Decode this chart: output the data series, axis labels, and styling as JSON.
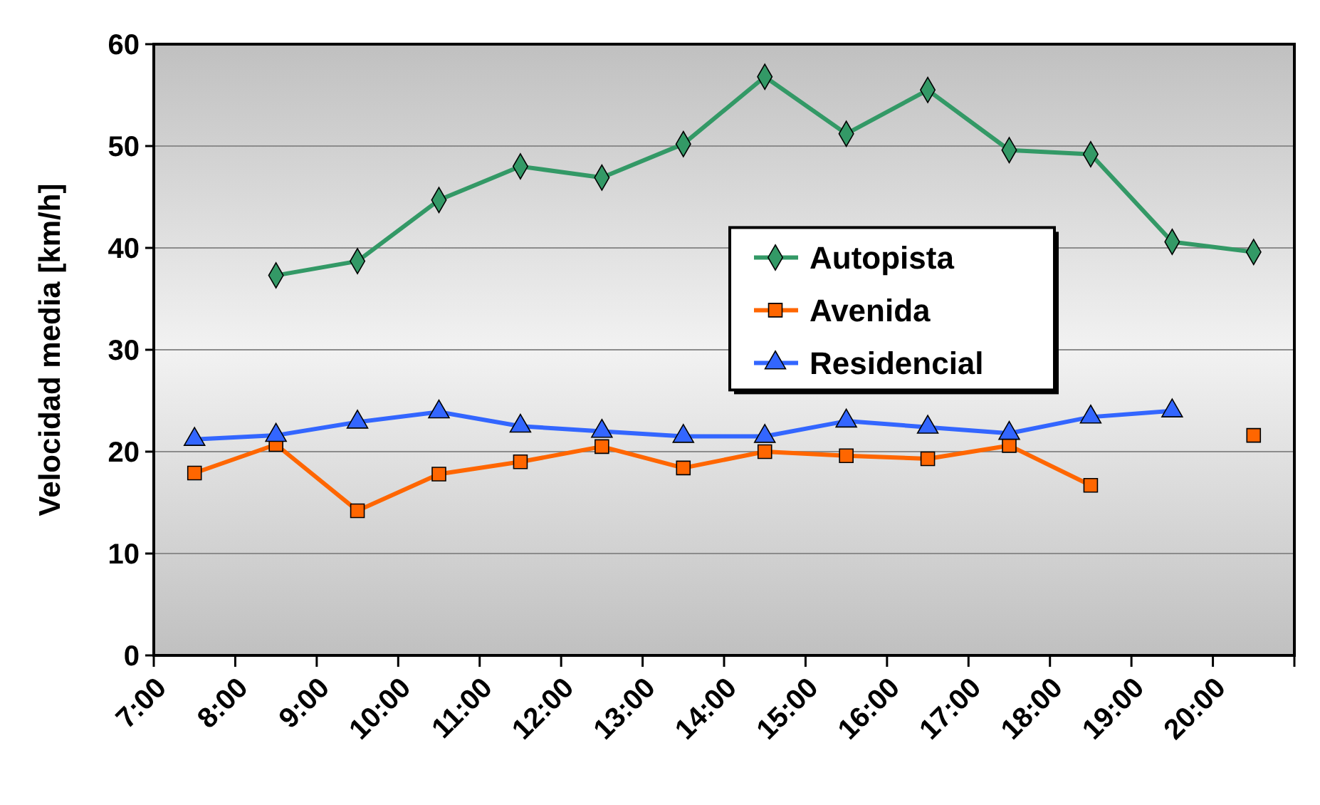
{
  "chart_data": {
    "type": "line",
    "ylabel": "Velocidad media [km/h]",
    "x": [
      7.5,
      8.5,
      9.5,
      10.5,
      11.5,
      12.5,
      13.5,
      14.5,
      15.5,
      16.5,
      17.5,
      18.5,
      19.5,
      20.5
    ],
    "xlim": [
      7,
      21
    ],
    "xticks": [
      {
        "value": 7,
        "label": "7:00"
      },
      {
        "value": 8,
        "label": "8:00"
      },
      {
        "value": 9,
        "label": "9:00"
      },
      {
        "value": 10,
        "label": "10:00"
      },
      {
        "value": 11,
        "label": "11:00"
      },
      {
        "value": 12,
        "label": "12:00"
      },
      {
        "value": 13,
        "label": "13:00"
      },
      {
        "value": 14,
        "label": "14:00"
      },
      {
        "value": 15,
        "label": "15:00"
      },
      {
        "value": 16,
        "label": "16:00"
      },
      {
        "value": 17,
        "label": "17:00"
      },
      {
        "value": 18,
        "label": "18:00"
      },
      {
        "value": 19,
        "label": "19:00"
      },
      {
        "value": 20,
        "label": "20:00"
      },
      {
        "value": 21,
        "label": null
      }
    ],
    "ylim": [
      0,
      60
    ],
    "yticks": [
      0,
      10,
      20,
      30,
      40,
      50,
      60
    ],
    "grid": "y",
    "legend": "center",
    "line_style": "solid",
    "series": [
      {
        "name": "Autopista",
        "color": "#339966",
        "marker": "diamond",
        "values": [
          null,
          37.3,
          38.7,
          44.7,
          48,
          46.9,
          50.2,
          56.8,
          51.2,
          55.5,
          49.6,
          49.2,
          40.6,
          39.6
        ]
      },
      {
        "name": "Avenida",
        "color": "#ff6600",
        "marker": "square",
        "values": [
          17.9,
          20.7,
          14.2,
          17.8,
          19.0,
          20.5,
          18.4,
          20.0,
          19.6,
          19.3,
          20.6,
          16.7,
          null,
          21.6
        ]
      },
      {
        "name": "Residencial",
        "color": "#3366ff",
        "marker": "triangle",
        "values": [
          21.2,
          21.6,
          22.9,
          23.9,
          22.5,
          22.0,
          21.5,
          21.5,
          23.0,
          22.4,
          21.8,
          23.4,
          24.0,
          null
        ]
      }
    ]
  }
}
